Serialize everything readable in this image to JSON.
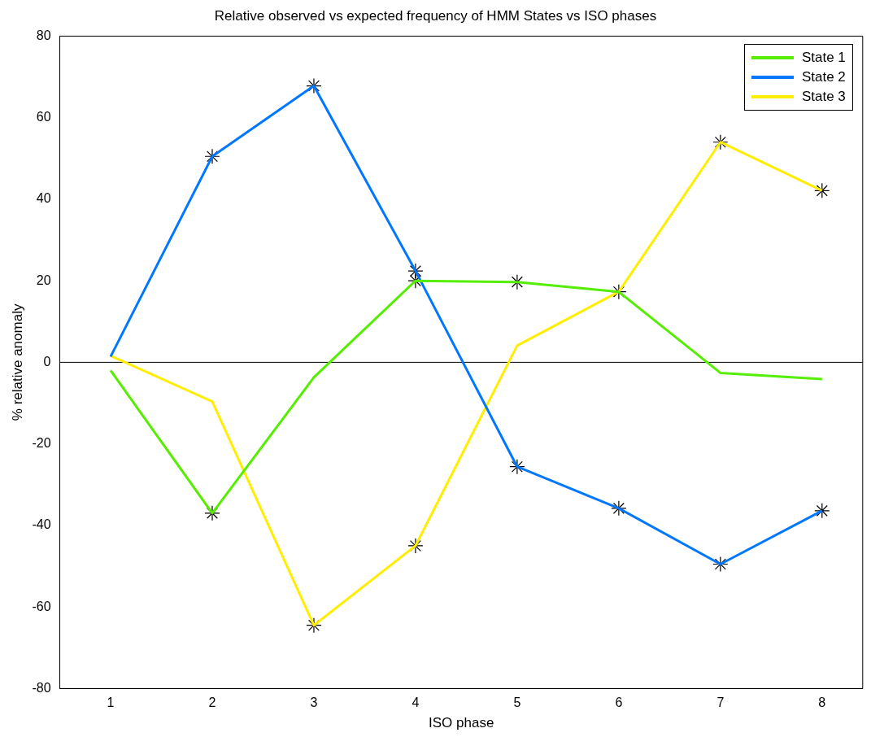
{
  "chart_data": {
    "type": "line",
    "title": "Relative observed vs expected frequency of HMM States vs ISO phases",
    "xlabel": "ISO phase",
    "ylabel": "% relative anomaly",
    "x": [
      1,
      2,
      3,
      4,
      5,
      6,
      7,
      8
    ],
    "series": [
      {
        "name": "State 1",
        "color": "#55ee00",
        "values": [
          -2,
          -37,
          -3.7,
          20,
          19.7,
          17.3,
          -2.6,
          -4.1
        ]
      },
      {
        "name": "State 2",
        "color": "#0077ff",
        "values": [
          1.4,
          50.5,
          67.8,
          22.4,
          -25.6,
          -35.8,
          -49.5,
          -36.4
        ]
      },
      {
        "name": "State 3",
        "color": "#ffee00",
        "values": [
          1.6,
          -9.6,
          -64.5,
          -45,
          4.1,
          17.3,
          54,
          42.1
        ]
      },
      {
        "type": "scatter",
        "color": "#000000",
        "marker": "cross",
        "x": [
          2,
          2,
          3,
          3,
          4,
          4,
          4,
          5,
          5,
          6,
          6,
          7,
          7,
          8,
          8
        ],
        "values": [
          50.5,
          -37,
          67.8,
          -64.5,
          22.4,
          20,
          -45,
          19.7,
          -25.6,
          17.3,
          -35.8,
          54,
          -49.5,
          42.1,
          -36.4
        ]
      }
    ],
    "xlim": [
      0.5,
      8.4
    ],
    "xticks": [
      1,
      2,
      3,
      4,
      5,
      6,
      7,
      8
    ],
    "ylim": [
      -80,
      80
    ],
    "yticks": [
      -80,
      -60,
      -40,
      -20,
      0,
      20,
      40,
      60,
      80
    ],
    "ref_lines": [
      {
        "axis": "y",
        "value": 0,
        "color": "#000000"
      }
    ],
    "grid": false,
    "legend": "top right",
    "marker": "none",
    "line_style": "solid"
  }
}
